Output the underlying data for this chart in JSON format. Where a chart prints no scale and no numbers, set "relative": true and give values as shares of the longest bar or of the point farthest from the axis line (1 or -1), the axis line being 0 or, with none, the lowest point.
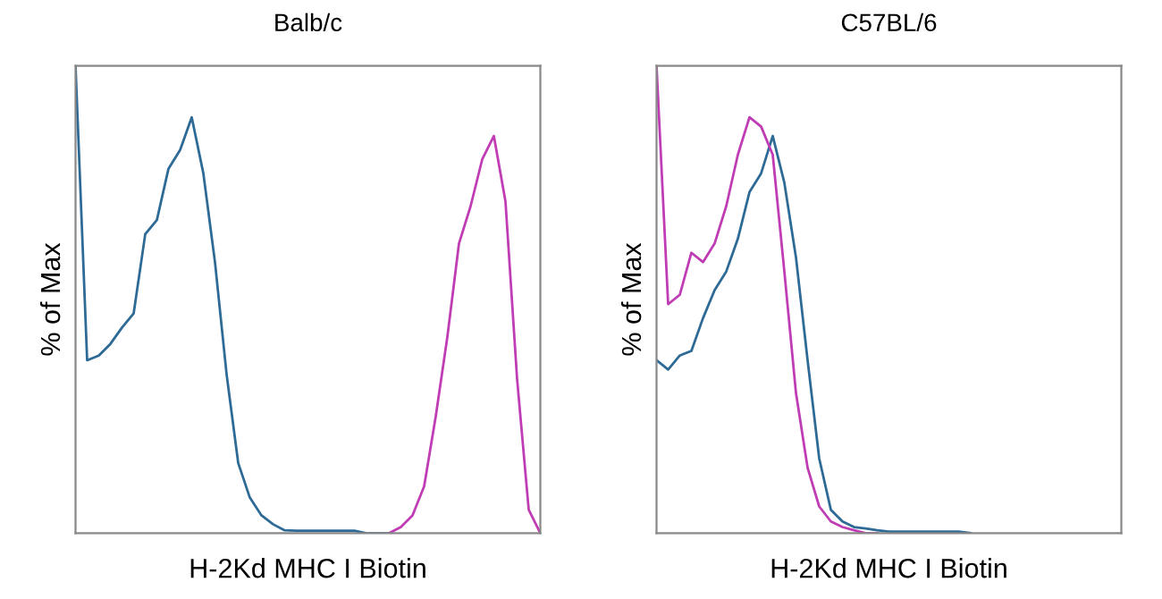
{
  "chart_data": [
    {
      "type": "line",
      "title": "Balb/c",
      "xlabel": "H-2Kd MHC I Biotin",
      "ylabel": "% of Max",
      "relative": true,
      "tick_labels": false,
      "categories": [
        null,
        null,
        null,
        null,
        null,
        null,
        null,
        null,
        null,
        null,
        null,
        null,
        null,
        null,
        null,
        null,
        null,
        null,
        null,
        null,
        null,
        null,
        null,
        null,
        null,
        null,
        null,
        null,
        null,
        null,
        null,
        null,
        null,
        null,
        null,
        null,
        null,
        null,
        null,
        null,
        null
      ],
      "series": [
        {
          "color": "#2e6a96",
          "values": [
            1,
            0.37,
            0.38,
            0.405,
            0.44,
            0.47,
            0.64,
            0.67,
            0.78,
            0.82,
            0.89,
            0.77,
            0.58,
            0.34,
            0.15,
            0.076,
            0.038,
            0.019,
            0.006,
            0.005,
            0.005,
            0.005,
            0.005,
            0.005,
            0.005,
            0,
            0,
            0,
            null,
            null,
            null,
            null,
            null,
            null,
            null,
            null,
            null,
            null,
            null,
            null,
            null
          ]
        },
        {
          "color": "#c03cb4",
          "values": [
            null,
            null,
            null,
            null,
            null,
            null,
            null,
            null,
            null,
            null,
            null,
            null,
            null,
            null,
            null,
            null,
            null,
            null,
            null,
            null,
            null,
            null,
            null,
            null,
            null,
            null,
            null,
            0,
            0.013,
            0.038,
            0.1,
            0.25,
            0.42,
            0.62,
            0.7,
            0.8,
            0.85,
            0.71,
            0.33,
            0.05,
            0
          ]
        }
      ]
    },
    {
      "type": "line",
      "title": "C57BL/6",
      "xlabel": "H-2Kd MHC I Biotin",
      "ylabel": "% of Max",
      "relative": true,
      "tick_labels": false,
      "categories": [
        null,
        null,
        null,
        null,
        null,
        null,
        null,
        null,
        null,
        null,
        null,
        null,
        null,
        null,
        null,
        null,
        null,
        null,
        null,
        null,
        null,
        null,
        null,
        null,
        null,
        null,
        null,
        null,
        null,
        null,
        null,
        null,
        null,
        null,
        null,
        null,
        null,
        null,
        null,
        null,
        null
      ],
      "series": [
        {
          "color": "#2e6a96",
          "values": [
            0.37,
            0.35,
            0.38,
            0.39,
            0.46,
            0.52,
            0.56,
            0.63,
            0.73,
            0.77,
            0.85,
            0.75,
            0.59,
            0.37,
            0.16,
            0.05,
            0.025,
            0.013,
            0.01,
            0.006,
            0.003,
            0.003,
            0.003,
            0.003,
            0.003,
            0.003,
            0.003,
            0,
            null,
            null,
            null,
            null,
            null,
            null,
            null,
            null,
            null,
            null,
            null,
            null,
            null
          ]
        },
        {
          "color": "#c03cb4",
          "values": [
            1,
            0.49,
            0.51,
            0.6,
            0.58,
            0.62,
            0.7,
            0.81,
            0.89,
            0.87,
            0.81,
            0.56,
            0.3,
            0.14,
            0.057,
            0.025,
            0.013,
            0.006,
            0,
            0,
            null,
            null,
            null,
            null,
            null,
            null,
            null,
            null,
            null,
            null,
            null,
            null,
            null,
            null,
            null,
            null,
            null,
            null,
            null,
            null,
            null
          ]
        }
      ]
    }
  ]
}
